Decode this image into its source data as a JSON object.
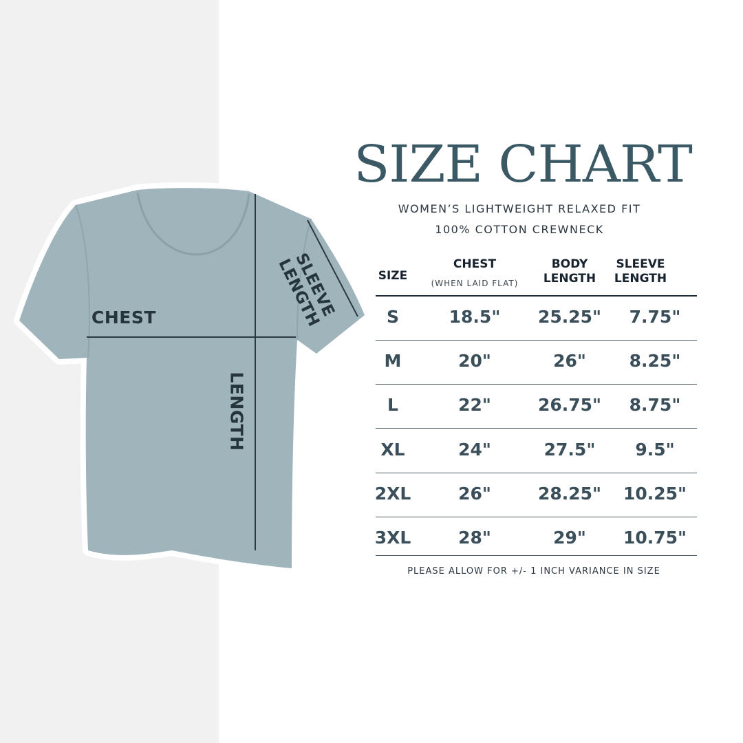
{
  "title": "SIZE CHART",
  "subtitle_lines": [
    "WOMEN’S LIGHTWEIGHT RELAXED FIT",
    "100% COTTON CREWNECK"
  ],
  "diagram": {
    "chest": "CHEST",
    "length": "LENGTH",
    "sleeve_1": "SLEEVE",
    "sleeve_2": "LENGTH",
    "shirt_color": "#9fb4bb"
  },
  "table": {
    "headers": {
      "size": "SIZE",
      "chest": "CHEST",
      "chest_note": "(WHEN LAID FLAT)",
      "body_1": "BODY",
      "body_2": "LENGTH",
      "sleeve_1": "SLEEVE",
      "sleeve_2": "LENGTH"
    },
    "rows": [
      {
        "size": "S",
        "chest": "18.5\"",
        "body": "25.25\"",
        "sleeve": "7.75\""
      },
      {
        "size": "M",
        "chest": "20\"",
        "body": "26\"",
        "sleeve": "8.25\""
      },
      {
        "size": "L",
        "chest": "22\"",
        "body": "26.75\"",
        "sleeve": "8.75\""
      },
      {
        "size": "XL",
        "chest": "24\"",
        "body": "27.5\"",
        "sleeve": "9.5\""
      },
      {
        "size": "2XL",
        "chest": "26\"",
        "body": "28.25\"",
        "sleeve": "10.25\""
      },
      {
        "size": "3XL",
        "chest": "28\"",
        "body": "29\"",
        "sleeve": "10.75\""
      }
    ]
  },
  "note": "PLEASE ALLOW FOR +/- 1 INCH VARIANCE IN SIZE"
}
